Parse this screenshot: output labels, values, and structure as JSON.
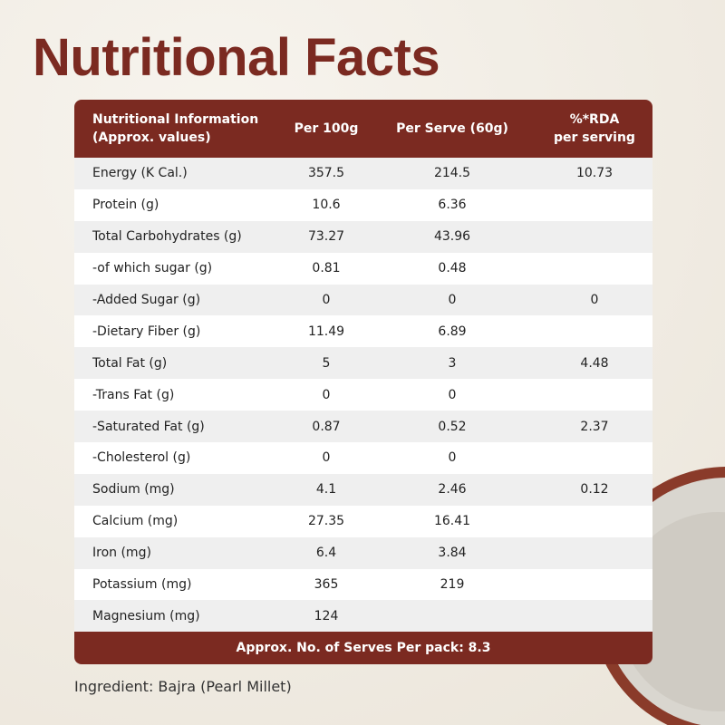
{
  "header": {
    "title": "Nutritional Facts"
  },
  "table": {
    "columns": [
      [
        "Nutritional Information",
        "(Approx. values)"
      ],
      [
        "Per 100g"
      ],
      [
        "Per Serve (60g)"
      ],
      [
        "%*RDA",
        "per serving"
      ]
    ],
    "rows": [
      [
        "Energy (K Cal.)",
        357.5,
        214.5,
        10.73
      ],
      [
        "Protein (g)",
        10.6,
        6.36,
        null
      ],
      [
        "Total Carbohydrates (g)",
        73.27,
        43.96,
        null
      ],
      [
        "-of which sugar (g)",
        0.81,
        0.48,
        null
      ],
      [
        "-Added Sugar (g)",
        0,
        0,
        0
      ],
      [
        "-Dietary Fiber (g)",
        11.49,
        6.89,
        null
      ],
      [
        "Total Fat (g)",
        5,
        3,
        4.48
      ],
      [
        "-Trans Fat (g)",
        0,
        0,
        null
      ],
      [
        "-Saturated Fat (g)",
        0.87,
        0.52,
        2.37
      ],
      [
        "-Cholesterol (g)",
        0,
        0,
        null
      ],
      [
        "Sodium (mg)",
        4.1,
        2.46,
        0.12
      ],
      [
        "Calcium (mg)",
        27.35,
        16.41,
        null
      ],
      [
        "Iron (mg)",
        6.4,
        3.84,
        null
      ],
      [
        "Potassium (mg)",
        365,
        219,
        null
      ],
      [
        "Magnesium (mg)",
        124,
        null,
        null
      ]
    ],
    "footer": "Approx. No. of Serves Per pack: 8.3"
  },
  "ingredient": "Ingredient: Bajra (Pearl Millet)"
}
